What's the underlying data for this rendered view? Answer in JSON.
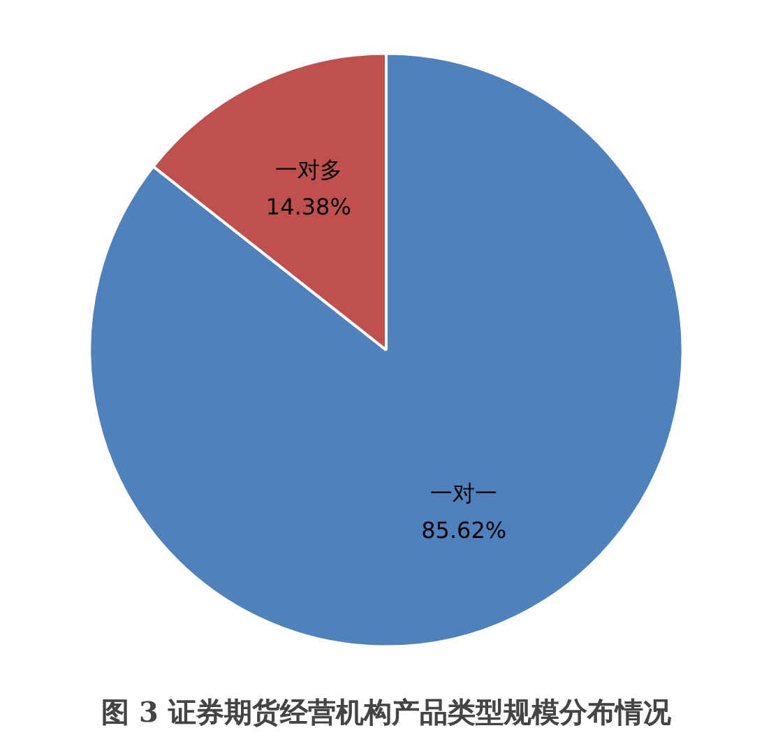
{
  "chart_data": {
    "type": "pie",
    "title": "图 3 证券期货经营机构产品类型规模分布情况",
    "categories": [
      "一对一",
      "一对多"
    ],
    "values": [
      85.62,
      14.38
    ],
    "value_labels": [
      "85.62%",
      "14.38%"
    ],
    "colors": [
      "#4f81bd",
      "#c0504d"
    ]
  }
}
